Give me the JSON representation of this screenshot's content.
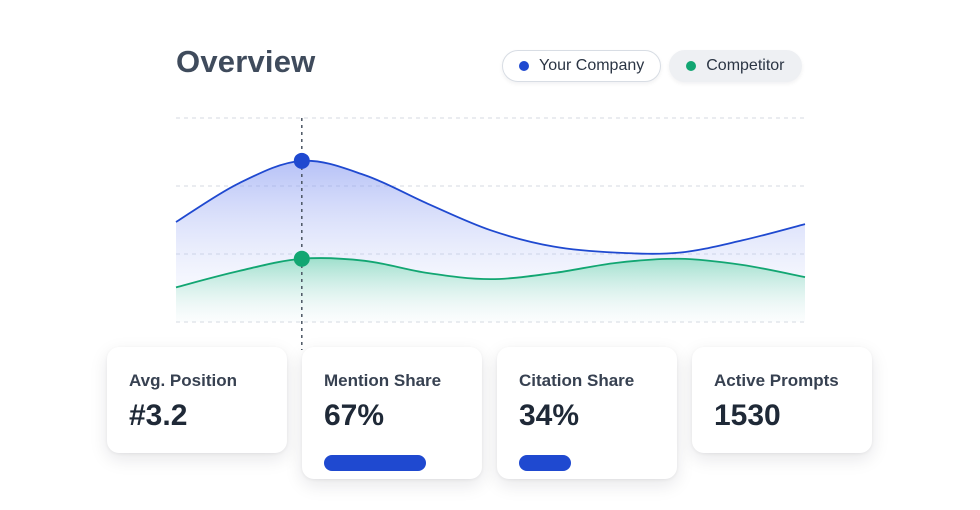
{
  "title": "Overview",
  "legend": [
    {
      "label": "Your Company",
      "color": "#1f49d0",
      "active": true
    },
    {
      "label": "Competitor",
      "color": "#12a672",
      "active": false
    }
  ],
  "chart_data": {
    "type": "area",
    "grid": true,
    "ylim": [
      0,
      100
    ],
    "x": [
      0,
      1,
      2,
      3,
      4,
      5,
      6,
      7,
      8,
      9,
      10
    ],
    "highlight_index": 2,
    "series": [
      {
        "name": "Your Company",
        "color": "#1f49d0",
        "values": [
          49,
          68,
          79,
          72,
          58,
          45,
          37,
          34,
          34,
          40,
          48
        ]
      },
      {
        "name": "Competitor",
        "color": "#12a672",
        "values": [
          17,
          25,
          31,
          30,
          24,
          21,
          24,
          29,
          31,
          28,
          22
        ]
      }
    ]
  },
  "cards": [
    {
      "label": "Avg. Position",
      "value": "#3.2"
    },
    {
      "label": "Mention Share",
      "value": "67%",
      "progress": 0.67
    },
    {
      "label": "Citation Share",
      "value": "34%",
      "progress": 0.34
    },
    {
      "label": "Active Prompts",
      "value": "1530"
    }
  ]
}
